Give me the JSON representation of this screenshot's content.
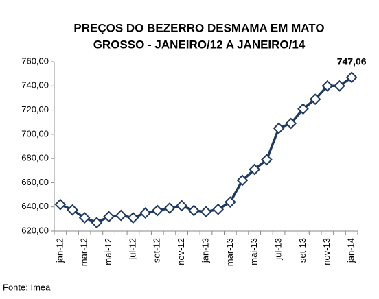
{
  "chart_data": {
    "type": "line",
    "title": [
      "PREÇOS DO BEZERRO DESMAMA EM MATO",
      "GROSSO - JANEIRO/12 A JANEIRO/14"
    ],
    "source": "Fonte: Imea",
    "categories": [
      "jan-12",
      null,
      "mar-12",
      null,
      "mai-12",
      null,
      "jul-12",
      null,
      "set-12",
      null,
      "nov-12",
      null,
      "jan-13",
      null,
      "mar-13",
      null,
      "mai-13",
      null,
      "jul-13",
      null,
      "set-13",
      null,
      "nov-13",
      null,
      "jan-14"
    ],
    "series": [
      {
        "color": "#1f3a5f",
        "values": [
          642,
          637.5,
          631,
          627,
          632,
          633,
          631,
          635,
          637,
          639,
          641,
          637,
          636,
          638,
          644,
          662,
          671,
          679,
          705,
          709,
          721,
          729,
          740,
          740,
          747.06
        ],
        "value_labels": [
          null,
          null,
          null,
          null,
          null,
          null,
          null,
          null,
          null,
          null,
          null,
          null,
          null,
          null,
          null,
          null,
          null,
          null,
          null,
          null,
          null,
          null,
          null,
          null,
          "747,06"
        ]
      }
    ],
    "ylim": [
      620,
      760
    ],
    "yticks": [
      {
        "value": 620,
        "label": "620,00"
      },
      {
        "value": 640,
        "label": "640,00"
      },
      {
        "value": 660,
        "label": "660,00"
      },
      {
        "value": 680,
        "label": "680,00"
      },
      {
        "value": 700,
        "label": "700,00"
      },
      {
        "value": 720,
        "label": "720,00"
      },
      {
        "value": 740,
        "label": "740,00"
      },
      {
        "value": 760,
        "label": "760,00"
      }
    ],
    "grid": false
  }
}
